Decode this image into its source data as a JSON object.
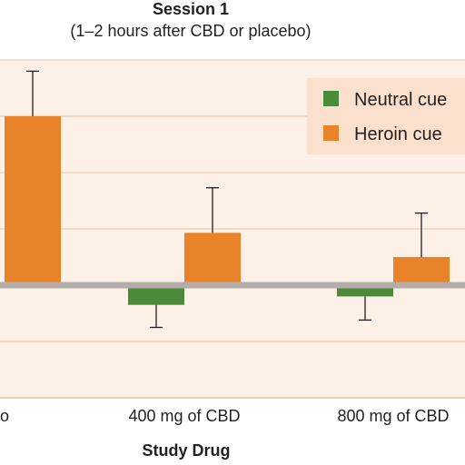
{
  "chart_data": {
    "type": "bar",
    "title": "Session 1",
    "subtitle": "(1–2 hours after CBD or placebo)",
    "xlabel": "Study Drug",
    "ylabel": "",
    "categories": [
      "Placebo",
      "400 mg of CBD",
      "800 mg of CBD"
    ],
    "category_labels_visible": [
      "o",
      "400 mg of CBD",
      "800 mg of CBD"
    ],
    "ylim": [
      -2,
      4
    ],
    "grid": true,
    "legend_position": "top-right",
    "series": [
      {
        "name": "Neutral cue",
        "color": "#4a8a3a",
        "values": [
          0,
          -0.35,
          -0.2
        ],
        "errors": [
          0,
          0.4,
          0.42
        ]
      },
      {
        "name": "Heroin cue",
        "color": "#e8832a",
        "values": [
          3.0,
          0.93,
          0.5
        ],
        "errors": [
          0.8,
          0.8,
          0.78
        ]
      }
    ]
  },
  "legend": {
    "neutral_label": "Neutral cue",
    "heroin_label": "Heroin cue"
  }
}
